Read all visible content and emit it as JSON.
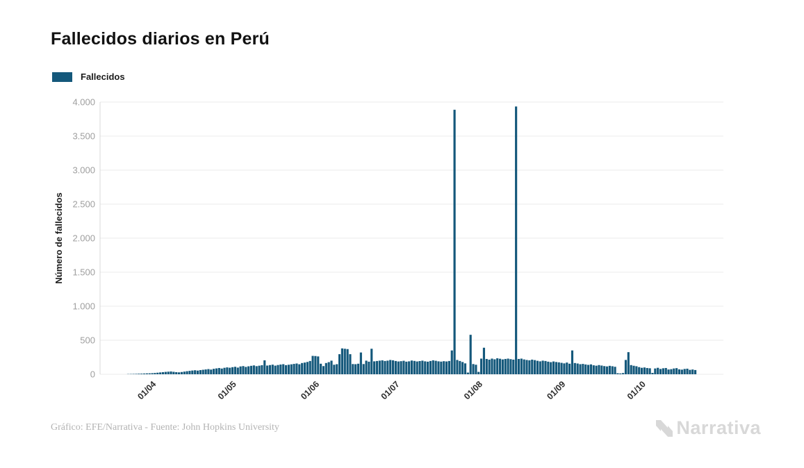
{
  "header": {
    "title": "Fallecidos diarios en Perú"
  },
  "legend": {
    "items": [
      {
        "label": "Fallecidos",
        "color": "#14587B"
      }
    ]
  },
  "footer": {
    "credit": "Gráfico: EFE/Narrativa - Fuente: John Hopkins University",
    "brand": "Narrativa"
  },
  "colors": {
    "bar": "#14587B",
    "gridline": "#ebebeb",
    "axis_line": "#d9d9d9",
    "y_tick_text": "#9e9e9e",
    "x_tick_text": "#2e2e2e",
    "title_text": "#111111",
    "credit_text": "#b3b3b3",
    "brand_text": "#d8d8d8"
  },
  "chart_data": {
    "type": "bar",
    "title": "Fallecidos diarios en Perú",
    "xlabel": "",
    "ylabel": "Número de fallecidos",
    "legend": [
      "Fallecidos"
    ],
    "legend_position": "top-left",
    "grid": "horizontal",
    "ylim": [
      0,
      4000
    ],
    "y_ticks": [
      "0",
      "500",
      "1.000",
      "1.500",
      "2.000",
      "2.500",
      "3.000",
      "3.500",
      "4.000"
    ],
    "x_tick_labels": [
      "01/04",
      "01/05",
      "01/06",
      "01/07",
      "01/08",
      "01/09",
      "01/10"
    ],
    "bar_color": "#14587B",
    "x_axis_note": "daily bars, late March through late October 2020; ticks mark month starts (dd/mm)",
    "months": [
      {
        "month": "2020-03 (from ~Mar 24)",
        "tick_label": "",
        "values": [
          3,
          4,
          5,
          6,
          8,
          9,
          11,
          13
        ]
      },
      {
        "month": "2020-04",
        "tick_label": "01/04",
        "values": [
          14,
          16,
          19,
          23,
          27,
          31,
          35,
          38,
          41,
          36,
          31,
          28,
          33,
          39,
          45,
          50,
          55,
          59,
          54,
          61,
          66,
          71,
          76,
          69,
          80,
          86,
          92,
          84,
          95,
          101
        ]
      },
      {
        "month": "2020-05",
        "tick_label": "01/05",
        "values": [
          96,
          104,
          110,
          98,
          115,
          120,
          108,
          117,
          124,
          130,
          119,
          126,
          133,
          205,
          128,
          135,
          141,
          127,
          136,
          143,
          148,
          134,
          140,
          146,
          152,
          158,
          147,
          165,
          172,
          181,
          195
        ]
      },
      {
        "month": "2020-06",
        "tick_label": "01/06",
        "values": [
          270,
          268,
          262,
          155,
          120,
          165,
          178,
          200,
          140,
          148,
          295,
          380,
          375,
          370,
          295,
          150,
          148,
          155,
          320,
          150,
          200,
          185,
          375,
          190,
          195,
          200,
          205,
          195,
          200,
          210
        ]
      },
      {
        "month": "2020-07",
        "tick_label": "01/07",
        "values": [
          205,
          195,
          188,
          192,
          198,
          185,
          190,
          202,
          196,
          188,
          194,
          200,
          190,
          185,
          195,
          205,
          198,
          190,
          186,
          192,
          188,
          195,
          350,
          3887,
          210,
          195,
          180,
          160,
          25,
          580,
          150
        ]
      },
      {
        "month": "2020-08",
        "tick_label": "01/08",
        "values": [
          140,
          35,
          230,
          390,
          225,
          215,
          230,
          220,
          235,
          228,
          218,
          225,
          230,
          222,
          215,
          3935,
          225,
          230,
          218,
          210,
          205,
          215,
          208,
          198,
          190,
          200,
          195,
          185,
          178,
          188,
          180
        ]
      },
      {
        "month": "2020-09",
        "tick_label": "01/09",
        "values": [
          175,
          168,
          160,
          172,
          155,
          350,
          165,
          158,
          148,
          152,
          144,
          138,
          145,
          132,
          126,
          135,
          128,
          120,
          115,
          124,
          118,
          110,
          15,
          12,
          18,
          210,
          325,
          135,
          125,
          118
        ]
      },
      {
        "month": "2020-10 (to ~Oct 22)",
        "tick_label": "01/10",
        "values": [
          105,
          95,
          100,
          92,
          88,
          20,
          85,
          95,
          78,
          88,
          92,
          70,
          75,
          85,
          90,
          72,
          68,
          78,
          82,
          65,
          70,
          62
        ]
      }
    ]
  }
}
